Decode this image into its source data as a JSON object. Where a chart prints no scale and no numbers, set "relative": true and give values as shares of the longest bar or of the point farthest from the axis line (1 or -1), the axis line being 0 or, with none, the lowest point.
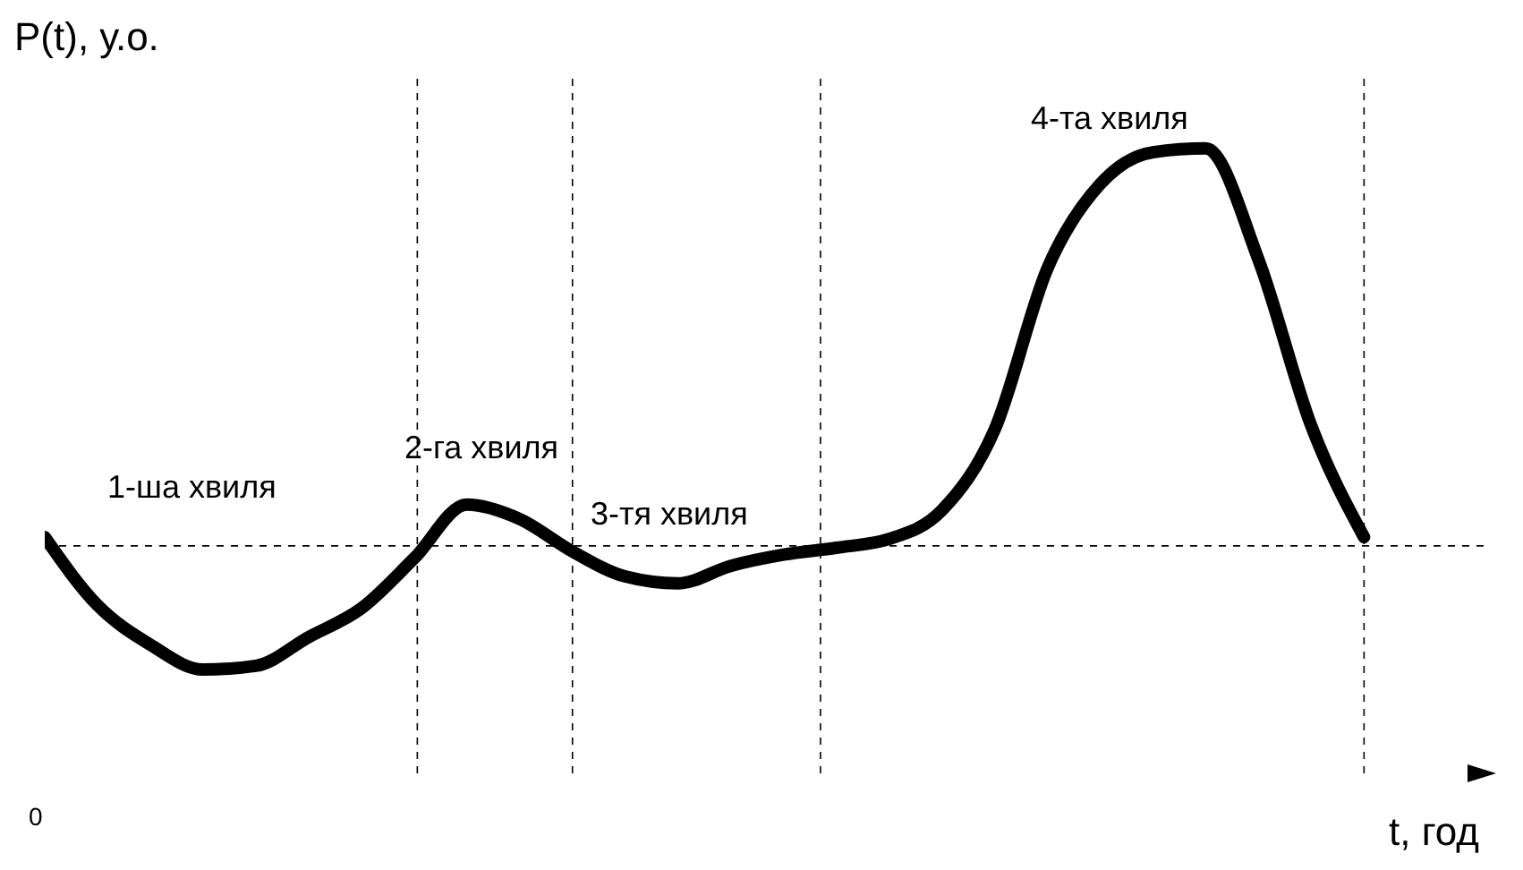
{
  "chart_data": {
    "type": "line",
    "relative": true,
    "xlabel": "t, год",
    "ylabel": "P(t), у.о.",
    "categories": [
      null,
      null,
      null,
      null,
      null,
      null,
      null,
      null,
      null,
      null,
      null,
      null,
      null,
      null,
      null,
      null,
      null,
      null,
      null,
      null,
      null,
      null,
      null,
      null,
      null,
      null
    ],
    "series": [
      {
        "color": "#000000",
        "values": [
          0.378,
          0.269,
          0.206,
          0.166,
          0.172,
          0.218,
          0.264,
          0.344,
          0.43,
          0.407,
          0.355,
          0.315,
          0.304,
          0.332,
          0.35,
          0.361,
          0.375,
          0.421,
          0.55,
          0.808,
          0.943,
          0.994,
          1,
          0.822,
          0.556,
          0.378
        ]
      }
    ],
    "ref_lines": [
      {
        "axis": "y",
        "value": 0.364,
        "line_style": "dashed"
      }
    ],
    "annotations": [
      "1-ша хвиля",
      "2-га хвиля",
      "3-тя хвиля",
      "4-та хвиля",
      "0"
    ],
    "marker": "none",
    "line_style": "solid",
    "grid": "x"
  }
}
